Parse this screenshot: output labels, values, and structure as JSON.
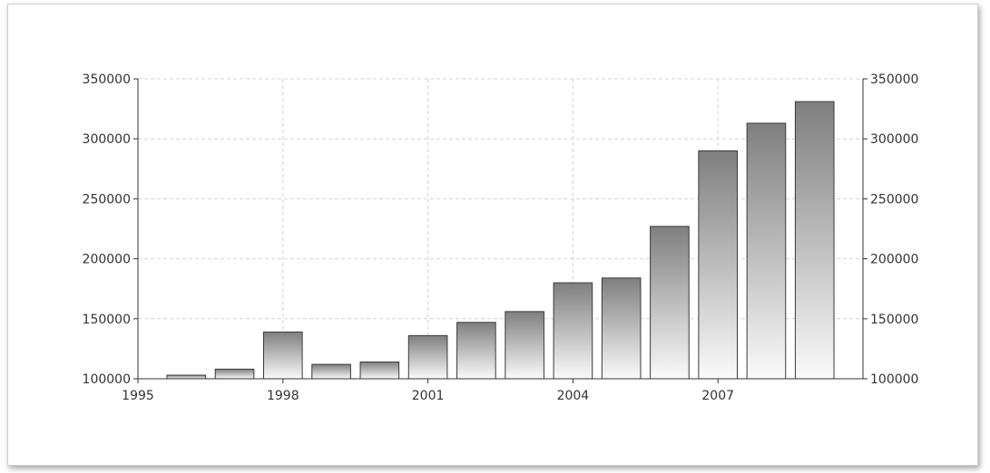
{
  "chart_data": {
    "type": "bar",
    "title": "",
    "xlabel": "",
    "ylabel": "",
    "x": [
      1996,
      1997,
      1998,
      1999,
      2000,
      2001,
      2002,
      2003,
      2004,
      2005,
      2006,
      2007,
      2008,
      2009
    ],
    "values": [
      103000,
      108000,
      139000,
      112000,
      114000,
      136000,
      147000,
      156000,
      180000,
      184000,
      227000,
      290000,
      313000,
      331000
    ],
    "xlim": [
      1995,
      2010
    ],
    "ylim": [
      100000,
      350000
    ],
    "x_ticks": [
      "1995",
      "1998",
      "2001",
      "2004",
      "2007"
    ],
    "x_tick_values": [
      1995,
      1998,
      2001,
      2004,
      2007
    ],
    "y_ticks": [
      "100000",
      "150000",
      "200000",
      "250000",
      "300000",
      "350000"
    ],
    "y_tick_values": [
      100000,
      150000,
      200000,
      250000,
      300000,
      350000
    ],
    "y_axis_both_sides": true,
    "grid": true,
    "legend": "none",
    "bar_gradient": [
      "#7f7f7f",
      "#fafafa"
    ],
    "bar_border_color": "#3a3a3a",
    "grid_color": "#d4d4d4"
  }
}
